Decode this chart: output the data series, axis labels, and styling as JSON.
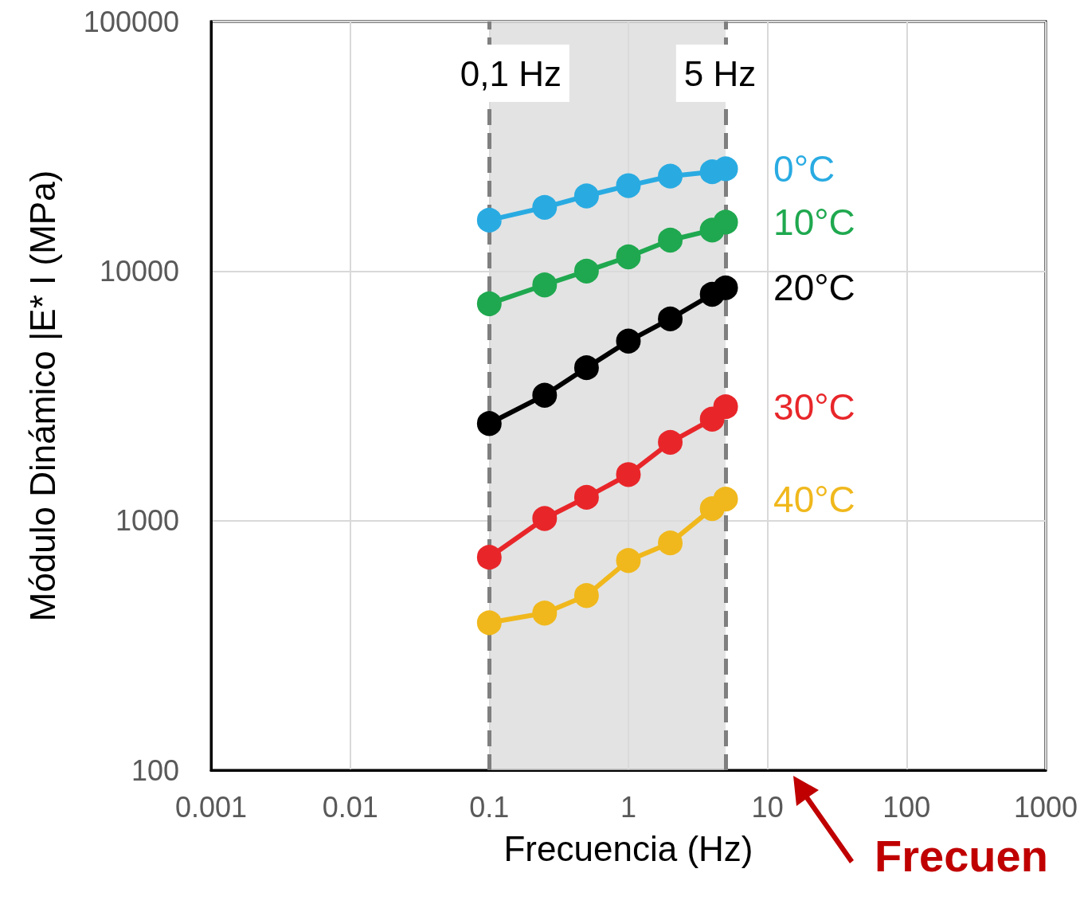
{
  "chart_data": {
    "type": "line",
    "xlabel": "Frecuencia (Hz)",
    "ylabel": "Módulo Dinámico |E* I (MPa)",
    "log": "xy",
    "grid": true,
    "legend": false,
    "marker": "circle",
    "line_style": "solid",
    "xlim": [
      0.001,
      1000
    ],
    "xticks": [
      0.001,
      0.01,
      0.1,
      1,
      10,
      100,
      1000
    ],
    "ylim": [
      100,
      100000
    ],
    "yticks": [
      100,
      1000,
      10000,
      100000
    ],
    "x": [
      0.1,
      0.25,
      0.5,
      1,
      2,
      4,
      5
    ],
    "series": [
      {
        "name": "0°C",
        "color": "#29abe2",
        "values": [
          16000,
          18000,
          20000,
          22000,
          24000,
          25000,
          25700
        ]
      },
      {
        "name": "10°C",
        "color": "#1fa84f",
        "values": [
          7400,
          8800,
          10000,
          11400,
          13300,
          14600,
          15700
        ]
      },
      {
        "name": "20°C",
        "color": "#000000",
        "values": [
          2450,
          3180,
          4100,
          5240,
          6430,
          8070,
          8570
        ]
      },
      {
        "name": "30°C",
        "color": "#e8262a",
        "values": [
          713,
          1020,
          1240,
          1530,
          2060,
          2550,
          2860
        ]
      },
      {
        "name": "40°C",
        "color": "#f0b81c",
        "values": [
          390,
          426,
          501,
          692,
          814,
          1117,
          1220
        ]
      }
    ],
    "ref_lines": [
      {
        "axis": "x",
        "value": 0.1,
        "label": "0,1 Hz",
        "color": "#7f7f7f",
        "line_style": "dashed"
      },
      {
        "axis": "x",
        "value": 5,
        "label": "5 Hz",
        "color": "#7f7f7f",
        "line_style": "dashed"
      }
    ],
    "bands": [
      {
        "axis": "x",
        "from": 0.1,
        "to": 5,
        "color": "#d9d9d9"
      }
    ],
    "annotations": [
      "Frecuen"
    ]
  }
}
